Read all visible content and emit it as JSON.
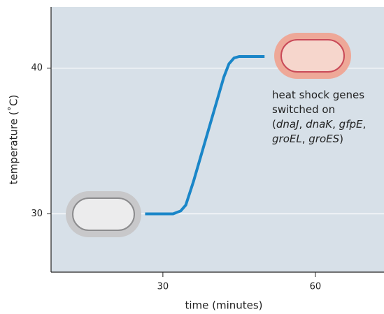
{
  "chart_data": {
    "type": "line",
    "xlabel": "time (minutes)",
    "ylabel": "temperature (˚C)",
    "xlim": [
      8,
      73.5
    ],
    "ylim": [
      26,
      44.2
    ],
    "xticks": [
      30,
      60
    ],
    "yticks": [
      30,
      40
    ],
    "grid": true,
    "series": [
      {
        "color": "#1a86c8",
        "x": [
          26.5,
          32,
          33.5,
          34.5,
          36,
          38,
          40,
          42,
          43,
          44,
          45,
          50
        ],
        "values": [
          30,
          30,
          30.2,
          30.6,
          32.2,
          34.6,
          37,
          39.4,
          40.3,
          40.7,
          40.8,
          40.8
        ]
      }
    ],
    "annotation": [
      [
        {
          "text": "heat shock genes",
          "italic": false
        }
      ],
      [
        {
          "text": "switched on",
          "italic": false
        }
      ],
      [
        {
          "text": "(",
          "italic": false
        },
        {
          "text": "dnaJ",
          "italic": true
        },
        {
          "text": ", ",
          "italic": false
        },
        {
          "text": "dnaK",
          "italic": true
        },
        {
          "text": ", ",
          "italic": false
        },
        {
          "text": "gfpE",
          "italic": true
        },
        {
          "text": ",",
          "italic": false
        }
      ],
      [
        {
          "text": "groEL",
          "italic": true
        },
        {
          "text": ", ",
          "italic": false
        },
        {
          "text": "groES",
          "italic": true
        },
        {
          "text": ")",
          "italic": false
        }
      ]
    ]
  }
}
